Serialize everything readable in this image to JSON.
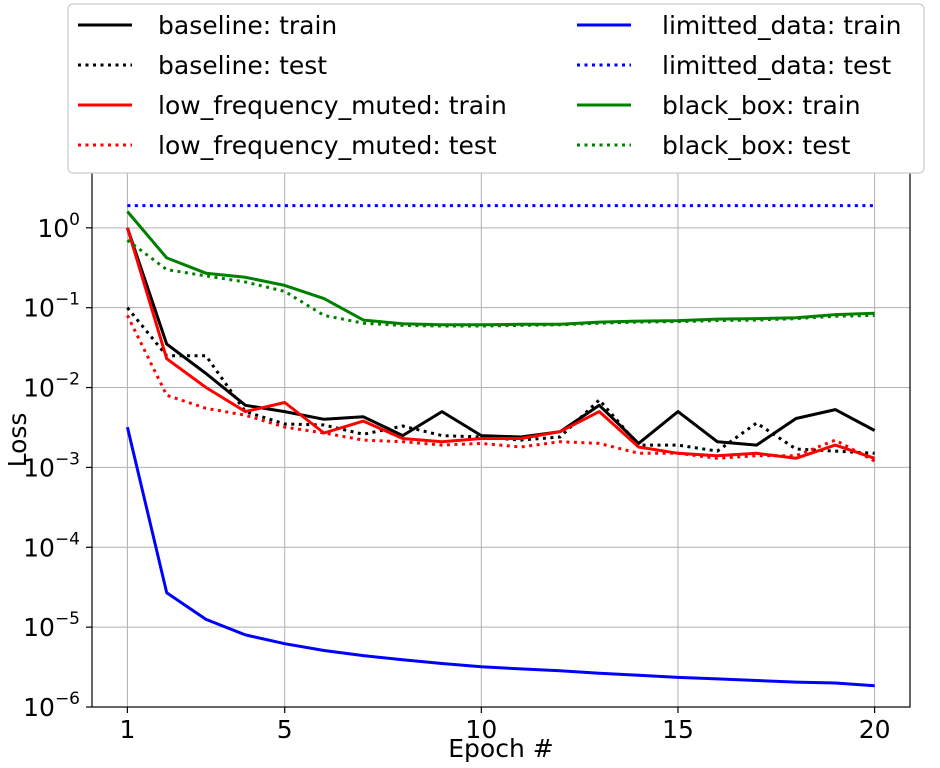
{
  "chart_data": {
    "type": "line",
    "xlabel": "Epoch #",
    "ylabel": "Loss",
    "yscale": "log",
    "xlim": [
      0.1,
      20.9
    ],
    "ylim": [
      1e-06,
      5
    ],
    "grid": true,
    "legend_position": "top",
    "x_ticks": [
      {
        "value": 1,
        "label": "1"
      },
      {
        "value": 5,
        "label": "5"
      },
      {
        "value": 10,
        "label": "10"
      },
      {
        "value": 15,
        "label": "15"
      },
      {
        "value": 20,
        "label": "20"
      }
    ],
    "y_ticks": [
      {
        "value": 1.0,
        "base": "10",
        "exp": "0"
      },
      {
        "value": 0.1,
        "base": "10",
        "exp": "−1"
      },
      {
        "value": 0.01,
        "base": "10",
        "exp": "−2"
      },
      {
        "value": 0.001,
        "base": "10",
        "exp": "−3"
      },
      {
        "value": 0.0001,
        "base": "10",
        "exp": "−4"
      },
      {
        "value": 1e-05,
        "base": "10",
        "exp": "−5"
      },
      {
        "value": 1e-06,
        "base": "10",
        "exp": "−6"
      }
    ],
    "x": [
      1,
      2,
      3,
      4,
      5,
      6,
      7,
      8,
      9,
      10,
      11,
      12,
      13,
      14,
      15,
      16,
      17,
      18,
      19,
      20
    ],
    "series": [
      {
        "name": "baseline: train",
        "color": "#000000",
        "style": "solid",
        "values": [
          1.0,
          0.035,
          0.015,
          0.006,
          0.005,
          0.004,
          0.0043,
          0.0025,
          0.005,
          0.0025,
          0.0024,
          0.0028,
          0.006,
          0.002,
          0.005,
          0.0021,
          0.0019,
          0.0041,
          0.0053,
          0.0029
        ]
      },
      {
        "name": "baseline: test",
        "color": "#000000",
        "style": "dotted",
        "values": [
          0.1,
          0.025,
          0.025,
          0.005,
          0.0035,
          0.0034,
          0.0026,
          0.0033,
          0.0025,
          0.0024,
          0.0022,
          0.0024,
          0.007,
          0.0019,
          0.0019,
          0.0016,
          0.0036,
          0.0017,
          0.0016,
          0.0015
        ]
      },
      {
        "name": "low_frequency_muted: train",
        "color": "#ff0000",
        "style": "solid",
        "values": [
          1.0,
          0.023,
          0.01,
          0.005,
          0.0065,
          0.0027,
          0.0038,
          0.0023,
          0.0021,
          0.0023,
          0.0023,
          0.0028,
          0.005,
          0.0018,
          0.0015,
          0.0014,
          0.0015,
          0.0013,
          0.0019,
          0.0013
        ]
      },
      {
        "name": "low_frequency_muted: test",
        "color": "#ff0000",
        "style": "dotted",
        "values": [
          0.08,
          0.008,
          0.0055,
          0.0045,
          0.0032,
          0.0027,
          0.0022,
          0.0021,
          0.0019,
          0.002,
          0.0018,
          0.0021,
          0.002,
          0.0015,
          0.0015,
          0.0013,
          0.0014,
          0.0014,
          0.0022,
          0.0012
        ]
      },
      {
        "name": "limitted_data: train",
        "color": "#0000ff",
        "style": "solid",
        "values": [
          0.0032,
          2.7e-05,
          1.25e-05,
          8e-06,
          6.2e-06,
          5.1e-06,
          4.4e-06,
          3.9e-06,
          3.5e-06,
          3.2e-06,
          3e-06,
          2.85e-06,
          2.65e-06,
          2.5e-06,
          2.35e-06,
          2.25e-06,
          2.15e-06,
          2.05e-06,
          2e-06,
          1.85e-06
        ]
      },
      {
        "name": "limitted_data: test",
        "color": "#0000ff",
        "style": "dotted",
        "values": [
          1.9,
          1.9,
          1.9,
          1.9,
          1.9,
          1.9,
          1.9,
          1.9,
          1.9,
          1.9,
          1.9,
          1.9,
          1.9,
          1.9,
          1.9,
          1.9,
          1.9,
          1.9,
          1.9,
          1.9
        ]
      },
      {
        "name": "black_box: train",
        "color": "#008000",
        "style": "solid",
        "values": [
          1.6,
          0.42,
          0.27,
          0.24,
          0.19,
          0.13,
          0.07,
          0.063,
          0.061,
          0.061,
          0.062,
          0.062,
          0.066,
          0.068,
          0.069,
          0.072,
          0.073,
          0.075,
          0.082,
          0.085
        ]
      },
      {
        "name": "black_box: test",
        "color": "#008000",
        "style": "dotted",
        "values": [
          0.7,
          0.3,
          0.25,
          0.21,
          0.16,
          0.08,
          0.064,
          0.06,
          0.059,
          0.059,
          0.06,
          0.061,
          0.064,
          0.066,
          0.067,
          0.069,
          0.07,
          0.073,
          0.078,
          0.08
        ]
      }
    ]
  }
}
